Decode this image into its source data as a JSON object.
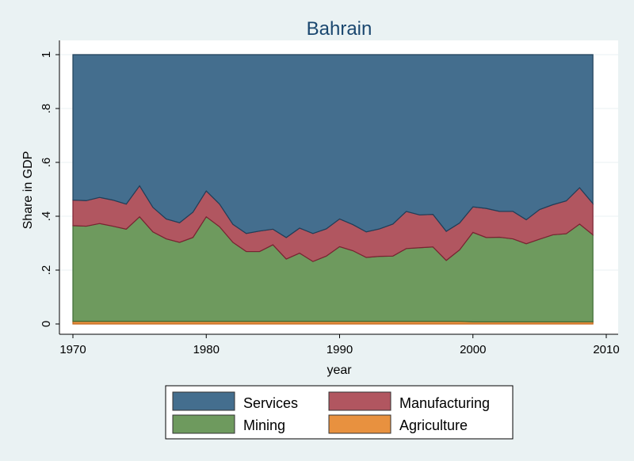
{
  "chart_data": {
    "type": "area",
    "stacked": true,
    "title": "Bahrain",
    "xlabel": "year",
    "ylabel": "Share in GDP",
    "xlim": [
      1970,
      2010
    ],
    "ylim": [
      0,
      1
    ],
    "x_ticks": [
      "1970",
      "1980",
      "1990",
      "2000",
      "2010"
    ],
    "y_ticks": [
      "0",
      ".2",
      ".4",
      ".6",
      ".8",
      "1"
    ],
    "grid": true,
    "legend_position": "bottom",
    "x": [
      1970,
      1971,
      1972,
      1973,
      1974,
      1975,
      1976,
      1977,
      1978,
      1979,
      1980,
      1981,
      1982,
      1983,
      1984,
      1985,
      1986,
      1987,
      1988,
      1989,
      1990,
      1991,
      1992,
      1993,
      1994,
      1995,
      1996,
      1997,
      1998,
      1999,
      2000,
      2001,
      2002,
      2003,
      2004,
      2005,
      2006,
      2007,
      2008,
      2009
    ],
    "series": [
      {
        "name": "Agriculture",
        "color": "#e8913f",
        "role": "agriculture",
        "values": [
          0.01,
          0.01,
          0.01,
          0.01,
          0.01,
          0.01,
          0.01,
          0.01,
          0.01,
          0.01,
          0.01,
          0.01,
          0.01,
          0.01,
          0.01,
          0.01,
          0.01,
          0.01,
          0.01,
          0.01,
          0.01,
          0.01,
          0.01,
          0.01,
          0.01,
          0.01,
          0.01,
          0.01,
          0.01,
          0.01,
          0.008,
          0.008,
          0.008,
          0.008,
          0.008,
          0.008,
          0.008,
          0.008,
          0.008,
          0.008
        ]
      },
      {
        "name": "Mining",
        "color": "#6e9a5e",
        "role": "mining",
        "values": [
          0.355,
          0.353,
          0.363,
          0.353,
          0.342,
          0.388,
          0.332,
          0.306,
          0.293,
          0.311,
          0.388,
          0.351,
          0.293,
          0.259,
          0.259,
          0.284,
          0.231,
          0.253,
          0.222,
          0.242,
          0.277,
          0.262,
          0.237,
          0.241,
          0.242,
          0.27,
          0.273,
          0.276,
          0.226,
          0.265,
          0.332,
          0.313,
          0.314,
          0.308,
          0.29,
          0.307,
          0.323,
          0.327,
          0.363,
          0.323
        ]
      },
      {
        "name": "Manufacturing",
        "color": "#b15660",
        "role": "manufacturing",
        "values": [
          0.095,
          0.095,
          0.097,
          0.097,
          0.093,
          0.115,
          0.091,
          0.074,
          0.073,
          0.094,
          0.096,
          0.084,
          0.067,
          0.067,
          0.076,
          0.058,
          0.08,
          0.093,
          0.104,
          0.101,
          0.103,
          0.097,
          0.095,
          0.102,
          0.119,
          0.138,
          0.122,
          0.121,
          0.108,
          0.1,
          0.095,
          0.108,
          0.096,
          0.102,
          0.089,
          0.11,
          0.112,
          0.122,
          0.135,
          0.116
        ]
      },
      {
        "name": "Services",
        "color": "#446e8e",
        "role": "services",
        "values": [
          0.54,
          0.542,
          0.53,
          0.54,
          0.555,
          0.487,
          0.567,
          0.61,
          0.624,
          0.585,
          0.506,
          0.555,
          0.63,
          0.664,
          0.655,
          0.648,
          0.679,
          0.644,
          0.664,
          0.647,
          0.61,
          0.631,
          0.658,
          0.647,
          0.629,
          0.582,
          0.595,
          0.593,
          0.656,
          0.625,
          0.565,
          0.571,
          0.582,
          0.582,
          0.613,
          0.575,
          0.557,
          0.543,
          0.494,
          0.553
        ]
      }
    ]
  },
  "legend": [
    {
      "label": "Services",
      "color": "#446e8e"
    },
    {
      "label": "Manufacturing",
      "color": "#b15660"
    },
    {
      "label": "Mining",
      "color": "#6e9a5e"
    },
    {
      "label": "Agriculture",
      "color": "#e8913f"
    }
  ]
}
